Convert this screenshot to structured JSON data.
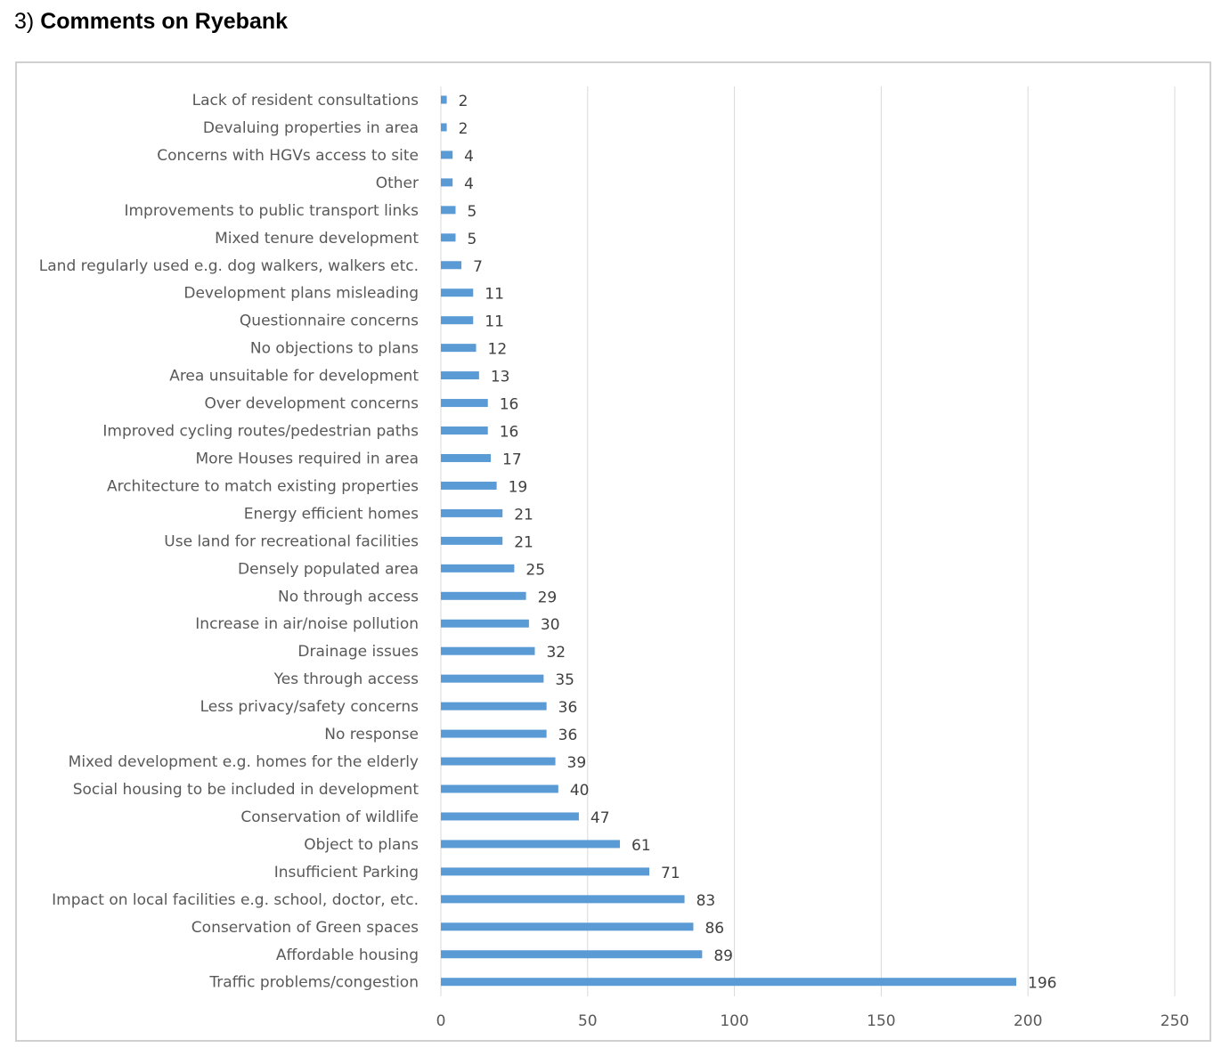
{
  "heading": {
    "number": "3)",
    "title": "Comments on Ryebank"
  },
  "chart_data": {
    "type": "bar",
    "orientation": "horizontal",
    "categories": [
      "Lack of resident consultations",
      "Devaluing properties in area",
      "Concerns with HGVs access to site",
      "Other",
      "Improvements to public transport links",
      "Mixed tenure development",
      "Land regularly used e.g. dog walkers, walkers etc.",
      "Development plans misleading",
      "Questionnaire concerns",
      "No objections to plans",
      "Area unsuitable for development",
      "Over development concerns",
      "Improved cycling routes/pedestrian paths",
      "More Houses required in area",
      "Architecture to match existing properties",
      "Energy efficient homes",
      "Use land for recreational facilities",
      "Densely populated area",
      "No through access",
      "Increase in air/noise pollution",
      "Drainage issues",
      "Yes through access",
      "Less privacy/safety concerns",
      "No response",
      "Mixed development e.g. homes for the elderly",
      "Social housing to be included in development",
      "Conservation of wildlife",
      "Object to plans",
      "Insufficient Parking",
      "Impact on local facilities e.g. school, doctor, etc.",
      "Conservation of Green spaces",
      "Affordable housing",
      "Traffic problems/congestion"
    ],
    "values": [
      2,
      2,
      4,
      4,
      5,
      5,
      7,
      11,
      11,
      12,
      13,
      16,
      16,
      17,
      19,
      21,
      21,
      25,
      29,
      30,
      32,
      35,
      36,
      36,
      39,
      40,
      47,
      61,
      71,
      83,
      86,
      89,
      196
    ],
    "xlim": [
      0,
      250
    ],
    "xticks": [
      0,
      50,
      100,
      150,
      200,
      250
    ],
    "grid": "vertical",
    "data_labels": true,
    "colors": {
      "bar": "#5b9bd5",
      "grid": "#d9d9d9",
      "frame": "#d0d0d0"
    }
  }
}
